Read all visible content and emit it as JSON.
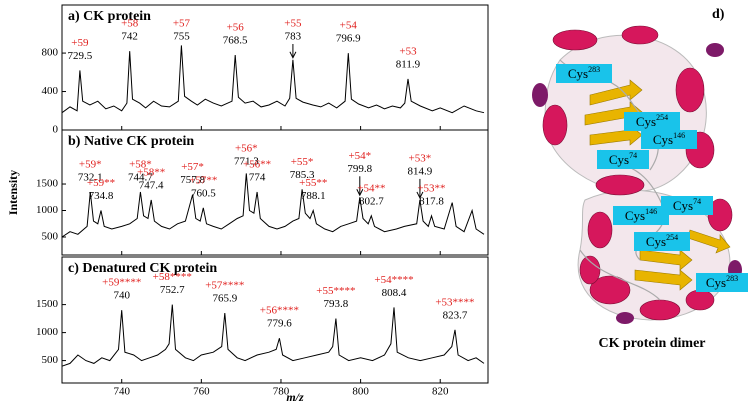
{
  "chart_data": [
    {
      "type": "line",
      "title": "a) CK protein",
      "xlim": [
        725,
        832
      ],
      "ylim": [
        0,
        1300
      ],
      "yticks": [
        0,
        400,
        800
      ],
      "color": "#000000",
      "x": [
        725,
        727,
        728.8,
        729.5,
        730.2,
        732,
        734,
        736,
        738,
        740,
        741.3,
        742,
        742.7,
        744.5,
        746,
        748,
        750,
        752,
        754.2,
        755,
        755.8,
        757.5,
        759,
        761,
        763,
        765,
        767.7,
        768.5,
        769.3,
        771,
        773,
        775,
        777,
        779,
        781,
        782.2,
        783,
        783.8,
        785.5,
        788,
        790,
        792,
        794,
        796.1,
        796.9,
        797.7,
        799.5,
        802,
        804,
        806,
        808,
        810,
        811.1,
        811.9,
        812.7,
        815,
        818,
        820,
        823,
        826,
        829,
        831
      ],
      "values": [
        180,
        240,
        200,
        620,
        300,
        260,
        300,
        220,
        250,
        200,
        280,
        820,
        320,
        280,
        230,
        300,
        250,
        240,
        300,
        880,
        350,
        300,
        260,
        320,
        280,
        250,
        300,
        780,
        340,
        280,
        300,
        240,
        260,
        300,
        250,
        330,
        730,
        330,
        290,
        260,
        240,
        280,
        230,
        300,
        800,
        320,
        270,
        230,
        260,
        220,
        250,
        230,
        280,
        530,
        300,
        250,
        200,
        230,
        180,
        250,
        200,
        180
      ],
      "annotations": [
        {
          "charge": "+59",
          "mz": 729.5
        },
        {
          "charge": "+58",
          "mz": 742.0
        },
        {
          "charge": "+57",
          "mz": 755.0
        },
        {
          "charge": "+56",
          "mz": 768.5
        },
        {
          "charge": "+55",
          "mz": 783.0,
          "arrow": true
        },
        {
          "charge": "+54",
          "mz": 796.9
        },
        {
          "charge": "+53",
          "mz": 811.9
        }
      ]
    },
    {
      "type": "line",
      "title": "b) Native  CK protein",
      "y_label": "Intensity",
      "xlim": [
        725,
        832
      ],
      "ylim": [
        160,
        2520
      ],
      "yticks": [
        500,
        1000,
        1500
      ],
      "color": "#000000",
      "x": [
        725,
        727,
        729,
        731.3,
        732.1,
        732.9,
        734,
        734.8,
        735.6,
        737.5,
        740,
        742,
        743.9,
        744.7,
        745.5,
        746.6,
        747.4,
        748.2,
        750,
        752,
        754,
        756,
        757.8,
        758.6,
        759.7,
        760.5,
        761.3,
        763,
        765,
        767,
        769,
        770.5,
        771.3,
        772.1,
        773.2,
        774,
        774.8,
        777,
        779,
        781,
        783,
        784.5,
        785.3,
        786.1,
        787.3,
        788.1,
        788.9,
        791,
        793,
        795,
        797,
        799,
        799.8,
        800.6,
        801.9,
        802.7,
        803.5,
        806,
        809,
        811,
        814.1,
        814.9,
        815.7,
        817,
        817.8,
        818.6,
        821,
        823,
        824,
        826,
        828,
        829,
        831
      ],
      "values": [
        500,
        600,
        550,
        700,
        1350,
        800,
        750,
        1000,
        700,
        650,
        700,
        750,
        850,
        1350,
        900,
        850,
        1200,
        800,
        700,
        650,
        750,
        800,
        1300,
        850,
        800,
        1050,
        750,
        700,
        650,
        750,
        850,
        900,
        1700,
        1000,
        950,
        1350,
        850,
        700,
        650,
        700,
        800,
        850,
        1400,
        950,
        850,
        1000,
        750,
        650,
        600,
        700,
        750,
        800,
        1250,
        850,
        750,
        900,
        700,
        600,
        650,
        700,
        750,
        1200,
        800,
        700,
        900,
        700,
        650,
        1150,
        700,
        600,
        1000,
        650,
        550
      ],
      "annotations": [
        {
          "charge": "+59*",
          "mz": 732.1
        },
        {
          "charge": "+59**",
          "mz": 734.8
        },
        {
          "charge": "+58*",
          "mz": 744.7
        },
        {
          "charge": "+58**",
          "mz": 747.4
        },
        {
          "charge": "+57*",
          "mz": 757.8
        },
        {
          "charge": "+57**",
          "mz": 760.5
        },
        {
          "charge": "+56*",
          "mz": 771.3
        },
        {
          "charge": "+56**",
          "mz": 774.0
        },
        {
          "charge": "+55*",
          "mz": 785.3
        },
        {
          "charge": "+55**",
          "mz": 788.1
        },
        {
          "charge": "+54*",
          "mz": 799.8,
          "arrow": true
        },
        {
          "charge": "+54**",
          "mz": 802.7
        },
        {
          "charge": "+53*",
          "mz": 814.9,
          "arrow": true
        },
        {
          "charge": "+53**",
          "mz": 817.8
        }
      ]
    },
    {
      "type": "line",
      "title": "c) Denatured CK protein",
      "x_label": "m/z",
      "xlim": [
        725,
        832
      ],
      "ylim": [
        100,
        2350
      ],
      "xticks": [
        740,
        760,
        780,
        800,
        820
      ],
      "yticks": [
        500,
        1000,
        1500
      ],
      "color": "#000000",
      "x": [
        725,
        727,
        729,
        731,
        733,
        735,
        737,
        739.2,
        740,
        740.8,
        743,
        745,
        747,
        749,
        751,
        751.9,
        752.7,
        753.5,
        756,
        758,
        760,
        763,
        765.1,
        765.9,
        766.7,
        769,
        771,
        774,
        777,
        778.8,
        779.6,
        780.4,
        783,
        786,
        789,
        792,
        793,
        793.8,
        794.6,
        797,
        800,
        803,
        806,
        807.6,
        808.4,
        809.2,
        812,
        815,
        818,
        821,
        822.9,
        823.7,
        824.5,
        827,
        829,
        831
      ],
      "values": [
        400,
        450,
        600,
        500,
        450,
        550,
        500,
        700,
        1400,
        650,
        600,
        500,
        550,
        600,
        700,
        800,
        1500,
        700,
        550,
        500,
        600,
        650,
        750,
        1350,
        700,
        550,
        500,
        600,
        650,
        700,
        900,
        600,
        500,
        550,
        600,
        650,
        750,
        1250,
        600,
        500,
        550,
        500,
        600,
        800,
        1450,
        650,
        550,
        500,
        550,
        600,
        750,
        1050,
        600,
        500,
        550,
        450
      ],
      "annotations": [
        {
          "charge": "+59****",
          "mz": 740.0
        },
        {
          "charge": "+58****",
          "mz": 752.7
        },
        {
          "charge": "+57****",
          "mz": 765.9
        },
        {
          "charge": "+56****",
          "mz": 779.6
        },
        {
          "charge": "+55****",
          "mz": 793.8
        },
        {
          "charge": "+54****",
          "mz": 808.4
        },
        {
          "charge": "+53****",
          "mz": 823.7
        }
      ]
    }
  ],
  "structure": {
    "panel_label": "d)",
    "caption": "CK protein dimer",
    "sites": [
      {
        "name": "Cys",
        "number": "283"
      },
      {
        "name": "Cys",
        "number": "254"
      },
      {
        "name": "Cys",
        "number": "146"
      },
      {
        "name": "Cys",
        "number": "74"
      },
      {
        "name": "Cys",
        "number": "146"
      },
      {
        "name": "Cys",
        "number": "74"
      },
      {
        "name": "Cys",
        "number": "254"
      },
      {
        "name": "Cys",
        "number": "283"
      }
    ]
  }
}
